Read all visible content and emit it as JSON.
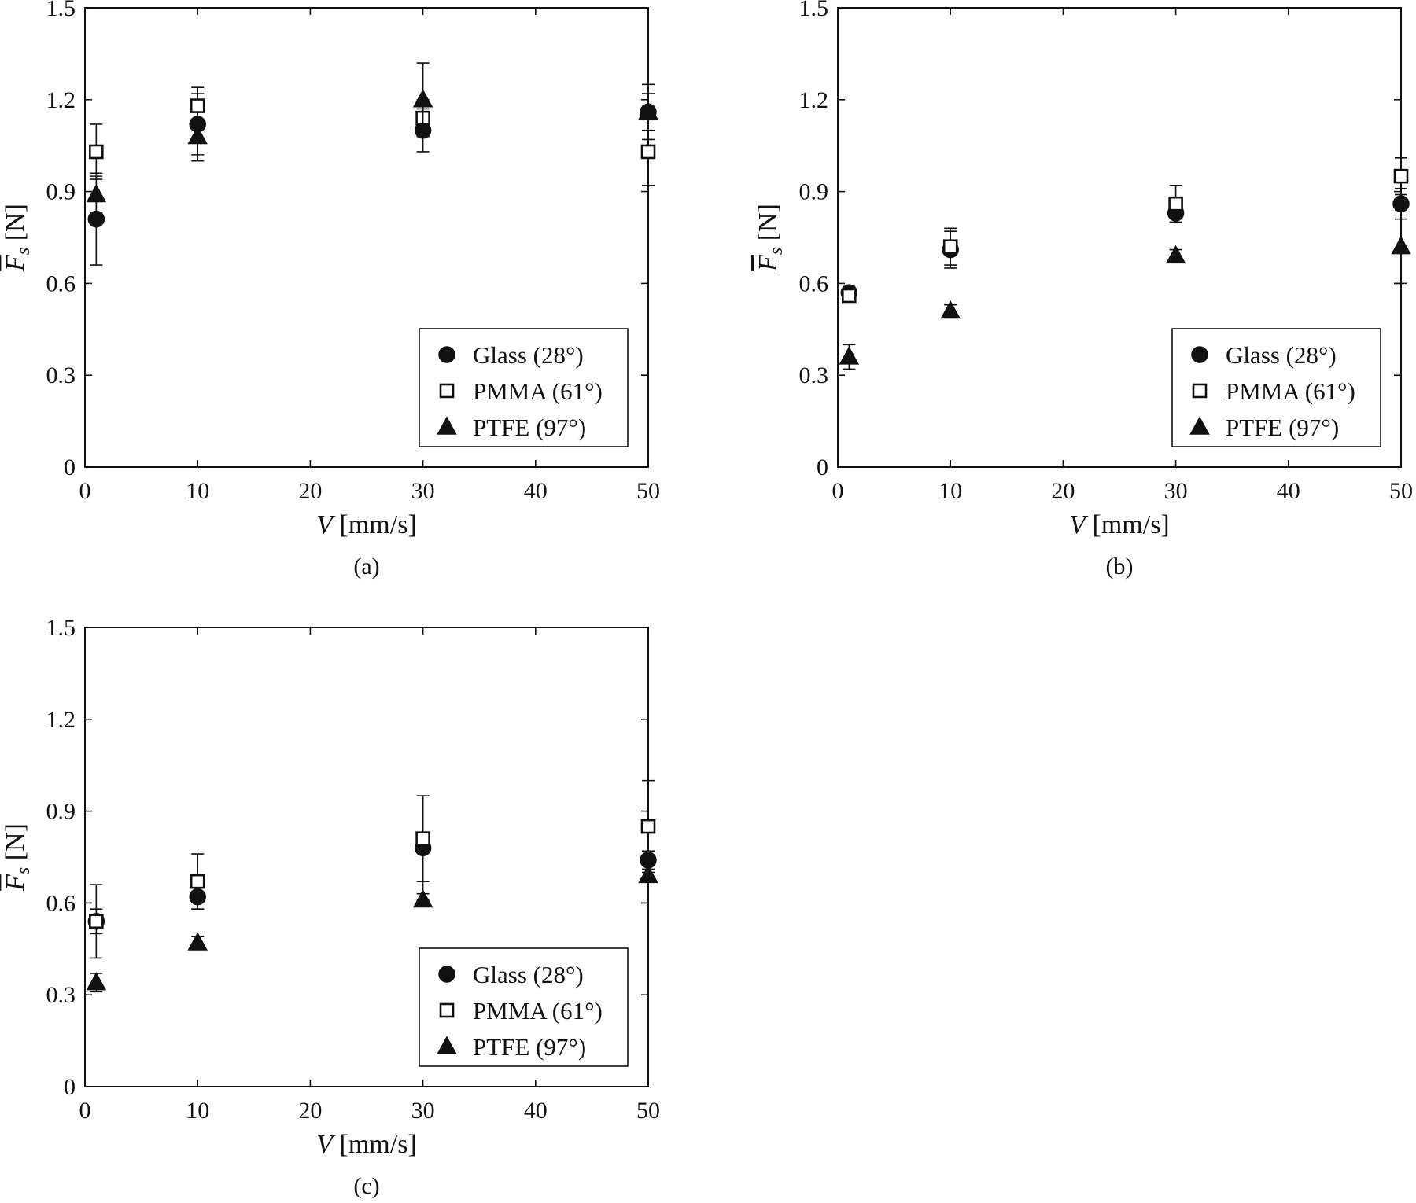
{
  "figure": {
    "colors": {
      "ink": "#111111",
      "background": "#ffffff"
    },
    "marker_shapes": {
      "Glass (28°)": "circle-filled",
      "PMMA (61°)": "square-open",
      "PTFE (97°)": "triangle-filled"
    }
  },
  "chart_data": [
    {
      "type": "scatter",
      "panel": "(a)",
      "caption": "(a)",
      "xlabel": "V [mm/s]",
      "xlabel_var": "V",
      "xlabel_unit": "[mm/s]",
      "ylabel": "F̅s [N]",
      "ylabel_var": "F",
      "ylabel_sub": "s",
      "ylabel_unit": "[N]",
      "xlim": [
        0,
        50
      ],
      "ylim": [
        0,
        1.5
      ],
      "xticks": [
        0,
        10,
        20,
        30,
        40,
        50
      ],
      "xtick_labels": [
        "0",
        "10",
        "20",
        "30",
        "40",
        "50"
      ],
      "yticks": [
        0,
        0.3,
        0.6,
        0.9,
        1.2,
        1.5
      ],
      "ytick_labels": [
        "0",
        "0.3",
        "0.6",
        "0.9",
        "1.2",
        "1.5"
      ],
      "grid": false,
      "legend_position": "bottom-right",
      "series": [
        {
          "name": "Glass (28°)",
          "marker": "circle-filled",
          "x": [
            1,
            10,
            30,
            50
          ],
          "y": [
            0.81,
            1.12,
            1.1,
            1.16
          ],
          "err": [
            0.15,
            0.1,
            0.07,
            0.09
          ]
        },
        {
          "name": "PMMA (61°)",
          "marker": "square-open",
          "x": [
            1,
            10,
            30,
            50
          ],
          "y": [
            1.03,
            1.18,
            1.14,
            1.03
          ],
          "err": [
            0.09,
            0.06,
            0.06,
            0.11
          ]
        },
        {
          "name": "PTFE (97°)",
          "marker": "triangle-filled",
          "x": [
            1,
            10,
            30,
            50
          ],
          "y": [
            0.89,
            1.08,
            1.2,
            1.16
          ],
          "err": [
            0.06,
            0.08,
            0.12,
            0.06
          ]
        }
      ]
    },
    {
      "type": "scatter",
      "panel": "(b)",
      "caption": "(b)",
      "xlabel": "V [mm/s]",
      "xlabel_var": "V",
      "xlabel_unit": "[mm/s]",
      "ylabel": "F̅s [N]",
      "ylabel_var": "F",
      "ylabel_sub": "s",
      "ylabel_unit": "[N]",
      "xlim": [
        0,
        50
      ],
      "ylim": [
        0,
        1.5
      ],
      "xticks": [
        0,
        10,
        20,
        30,
        40,
        50
      ],
      "xtick_labels": [
        "0",
        "10",
        "20",
        "30",
        "40",
        "50"
      ],
      "yticks": [
        0,
        0.3,
        0.6,
        0.9,
        1.2,
        1.5
      ],
      "ytick_labels": [
        "0",
        "0.3",
        "0.6",
        "0.9",
        "1.2",
        "1.5"
      ],
      "grid": false,
      "legend_position": "bottom-right",
      "series": [
        {
          "name": "Glass (28°)",
          "marker": "circle-filled",
          "x": [
            1,
            10,
            30,
            50
          ],
          "y": [
            0.57,
            0.71,
            0.83,
            0.86
          ],
          "err": [
            0.02,
            0.06,
            0.03,
            0.05
          ]
        },
        {
          "name": "PMMA (61°)",
          "marker": "square-open",
          "x": [
            1,
            10,
            30,
            50
          ],
          "y": [
            0.56,
            0.72,
            0.86,
            0.95
          ],
          "err": [
            0.02,
            0.06,
            0.06,
            0.06
          ]
        },
        {
          "name": "PTFE (97°)",
          "marker": "triangle-filled",
          "x": [
            1,
            10,
            30,
            50
          ],
          "y": [
            0.36,
            0.51,
            0.69,
            0.72
          ],
          "err": [
            0.04,
            0.02,
            0.02,
            0.12
          ]
        }
      ]
    },
    {
      "type": "scatter",
      "panel": "(c)",
      "caption": "(c)",
      "xlabel": "V [mm/s]",
      "xlabel_var": "V",
      "xlabel_unit": "[mm/s]",
      "ylabel": "F̅s [N]",
      "ylabel_var": "F",
      "ylabel_sub": "s",
      "ylabel_unit": "[N]",
      "xlim": [
        0,
        50
      ],
      "ylim": [
        0,
        1.5
      ],
      "xticks": [
        0,
        10,
        20,
        30,
        40,
        50
      ],
      "xtick_labels": [
        "0",
        "10",
        "20",
        "30",
        "40",
        "50"
      ],
      "yticks": [
        0,
        0.3,
        0.6,
        0.9,
        1.2,
        1.5
      ],
      "ytick_labels": [
        "0",
        "0.3",
        "0.6",
        "0.9",
        "1.2",
        "1.5"
      ],
      "grid": false,
      "legend_position": "bottom-right",
      "series": [
        {
          "name": "Glass (28°)",
          "marker": "circle-filled",
          "x": [
            1,
            10,
            30,
            50
          ],
          "y": [
            0.54,
            0.62,
            0.78,
            0.74
          ],
          "err": [
            0.04,
            0.04,
            0.17,
            0.03
          ]
        },
        {
          "name": "PMMA (61°)",
          "marker": "square-open",
          "x": [
            1,
            10,
            30,
            50
          ],
          "y": [
            0.54,
            0.67,
            0.81,
            0.85
          ],
          "err": [
            0.12,
            0.09,
            0.14,
            0.15
          ]
        },
        {
          "name": "PTFE (97°)",
          "marker": "triangle-filled",
          "x": [
            1,
            10,
            30,
            50
          ],
          "y": [
            0.34,
            0.47,
            0.61,
            0.69
          ],
          "err": [
            0.03,
            0.02,
            0.02,
            0.02
          ]
        }
      ]
    }
  ]
}
